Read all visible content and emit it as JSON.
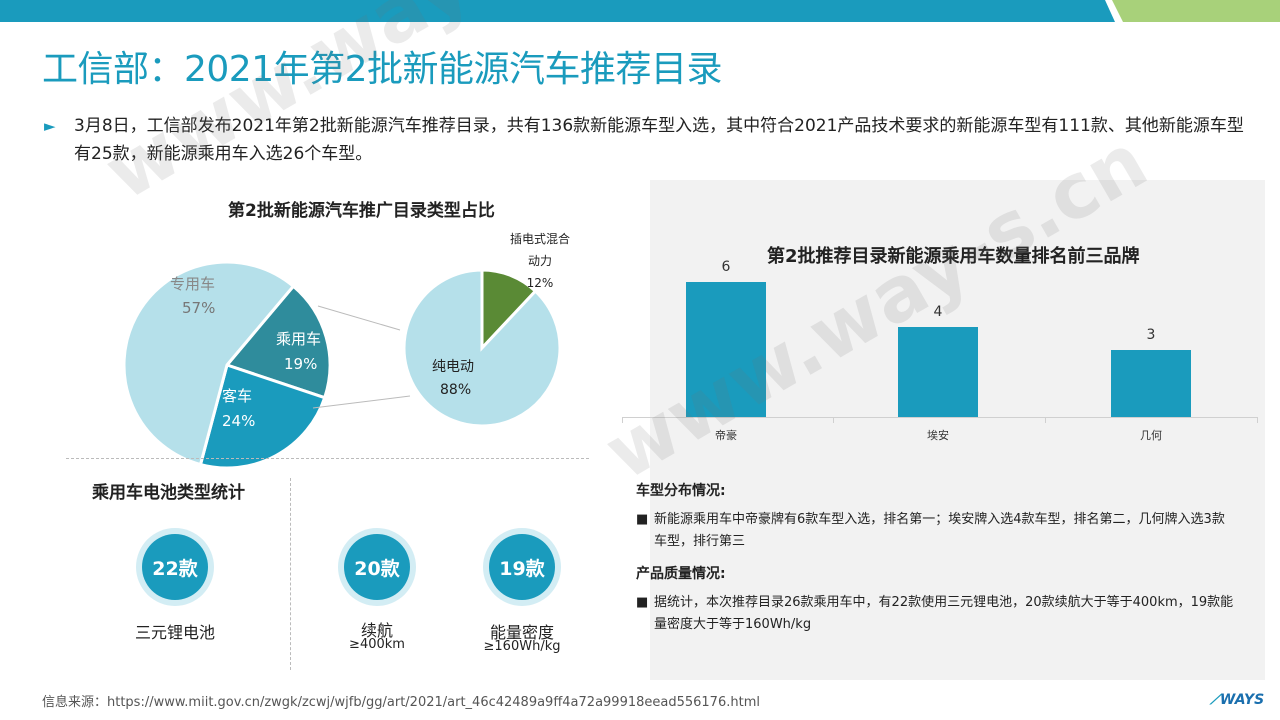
{
  "header": {
    "title": "工信部：2021年第2批新能源汽车推荐目录",
    "bullet": "3月8日，工信部发布2021年第2批新能源汽车推荐目录，共有136款新能源车型入选，其中符合2021产品技术要求的新能源车型有111款、其他新能源车型有25款，新能源乘用车入选26个车型。"
  },
  "pie_section": {
    "title": "第2批新能源汽车推广目录类型占比"
  },
  "battery_section": {
    "title": "乘用车电池类型统计",
    "stats": [
      {
        "value": "22款",
        "label": "三元锂电池",
        "sub": ""
      },
      {
        "value": "20款",
        "label": "续航",
        "sub": "≥400km"
      },
      {
        "value": "19款",
        "label": "能量密度",
        "sub": "≥160Wh/kg"
      }
    ]
  },
  "notes": {
    "heading1": "车型分布情况:",
    "item1": "新能源乘用车中帝豪牌有6款车型入选，排名第一；埃安牌入选4款车型，排名第二，几何牌入选3款车型，排行第三",
    "heading2": "产品质量情况:",
    "item2": "据统计，本次推荐目录26款乘用车中，有22款使用三元锂电池，20款续航大于等于400km，19款能量密度大于等于160Wh/kg",
    "bullet_glyph": "■"
  },
  "footer": {
    "source": "信息来源：https://www.miit.gov.cn/zwgk/zcwj/wjfb/gg/art/2021/art_46c42489a9ff4a72a99918eead556176.html",
    "logo": "WAYS"
  },
  "watermark": "www.way-s.cn",
  "colors": {
    "accent": "#1a9bbd",
    "light": "#b5e0ea",
    "teal": "#2f8c9c",
    "green": "#5a8a35",
    "topbar_green": "#a8d17a"
  },
  "chart_data": [
    {
      "type": "pie",
      "title": "第2批新能源汽车推广目录类型占比",
      "categories": [
        "专用车",
        "乘用车",
        "客车"
      ],
      "values": [
        57,
        19,
        24
      ],
      "labels": [
        "57%",
        "19%",
        "24%"
      ],
      "colors": [
        "#b5e0ea",
        "#2f8c9c",
        "#1a9bbd"
      ]
    },
    {
      "type": "pie",
      "title": "",
      "categories": [
        "插电式混合动力",
        "纯电动"
      ],
      "label_lines": [
        "插电式混合",
        "动力"
      ],
      "values": [
        12,
        88
      ],
      "labels": [
        "12%",
        "88%"
      ],
      "colors": [
        "#5a8a35",
        "#b5e0ea"
      ]
    },
    {
      "type": "bar",
      "title": "第2批推荐目录新能源乘用车数量排名前三品牌",
      "categories": [
        "帝豪",
        "埃安",
        "几何"
      ],
      "values": [
        6,
        4,
        3
      ],
      "ylim": [
        0,
        7
      ],
      "grid": false,
      "color": "#1a9bbd"
    }
  ]
}
